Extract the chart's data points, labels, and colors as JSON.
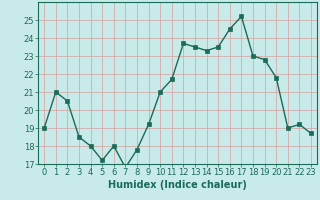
{
  "x": [
    0,
    1,
    2,
    3,
    4,
    5,
    6,
    7,
    8,
    9,
    10,
    11,
    12,
    13,
    14,
    15,
    16,
    17,
    18,
    19,
    20,
    21,
    22,
    23
  ],
  "y": [
    19,
    21,
    20.5,
    18.5,
    18,
    17.2,
    18,
    16.8,
    17.8,
    19.2,
    21,
    21.7,
    23.7,
    23.5,
    23.3,
    23.5,
    24.5,
    25.2,
    23,
    22.8,
    21.8,
    19,
    19.2,
    18.7
  ],
  "line_color": "#1a6b5a",
  "marker": "s",
  "marker_size": 2.5,
  "bg_color": "#c8eae8",
  "grid_color": "#d4a0a0",
  "xlabel": "Humidex (Indice chaleur)",
  "ylim": [
    17,
    26
  ],
  "xlim": [
    -0.5,
    23.5
  ],
  "yticks": [
    17,
    18,
    19,
    20,
    21,
    22,
    23,
    24,
    25
  ],
  "xticks": [
    0,
    1,
    2,
    3,
    4,
    5,
    6,
    7,
    8,
    9,
    10,
    11,
    12,
    13,
    14,
    15,
    16,
    17,
    18,
    19,
    20,
    21,
    22,
    23
  ],
  "xlabel_fontsize": 7,
  "tick_fontsize": 6,
  "line_width": 1.0
}
